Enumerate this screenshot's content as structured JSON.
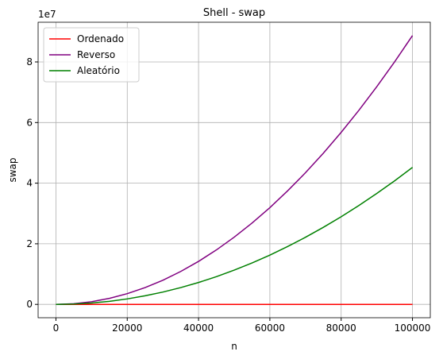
{
  "chart_data": {
    "type": "line",
    "title": "Shell - swap",
    "xlabel": "n",
    "ylabel": "swap",
    "y_offset_label": "1e7",
    "x": [
      0,
      5000,
      10000,
      15000,
      20000,
      25000,
      30000,
      35000,
      40000,
      45000,
      50000,
      55000,
      60000,
      65000,
      70000,
      75000,
      80000,
      85000,
      90000,
      95000,
      100000
    ],
    "series": [
      {
        "name": "Ordenado",
        "color": "#ff0000",
        "values": [
          0,
          0,
          0,
          0,
          0,
          0,
          0,
          0,
          0,
          0,
          0,
          0,
          0,
          0,
          0,
          0,
          0,
          0,
          0,
          0,
          0
        ]
      },
      {
        "name": "Reverso",
        "color": "#800080",
        "values": [
          0,
          0.022,
          0.089,
          0.2,
          0.355,
          0.554,
          0.798,
          1.087,
          1.419,
          1.796,
          2.218,
          2.683,
          3.193,
          3.748,
          4.346,
          4.989,
          5.677,
          6.409,
          7.185,
          8.005,
          8.87
        ]
      },
      {
        "name": "Aleatório",
        "color": "#008000",
        "values": [
          0,
          0.011,
          0.045,
          0.102,
          0.181,
          0.283,
          0.407,
          0.554,
          0.723,
          0.915,
          1.13,
          1.367,
          1.627,
          1.91,
          2.215,
          2.543,
          2.893,
          3.266,
          3.661,
          4.079,
          4.52
        ]
      }
    ],
    "xlim": [
      -5000,
      105000
    ],
    "xticks": [
      0,
      20000,
      40000,
      60000,
      80000,
      100000
    ],
    "ylim": [
      -0.44,
      9.31
    ],
    "yticks": [
      0,
      2,
      4,
      6,
      8
    ],
    "grid": true,
    "legend": "upper left"
  }
}
